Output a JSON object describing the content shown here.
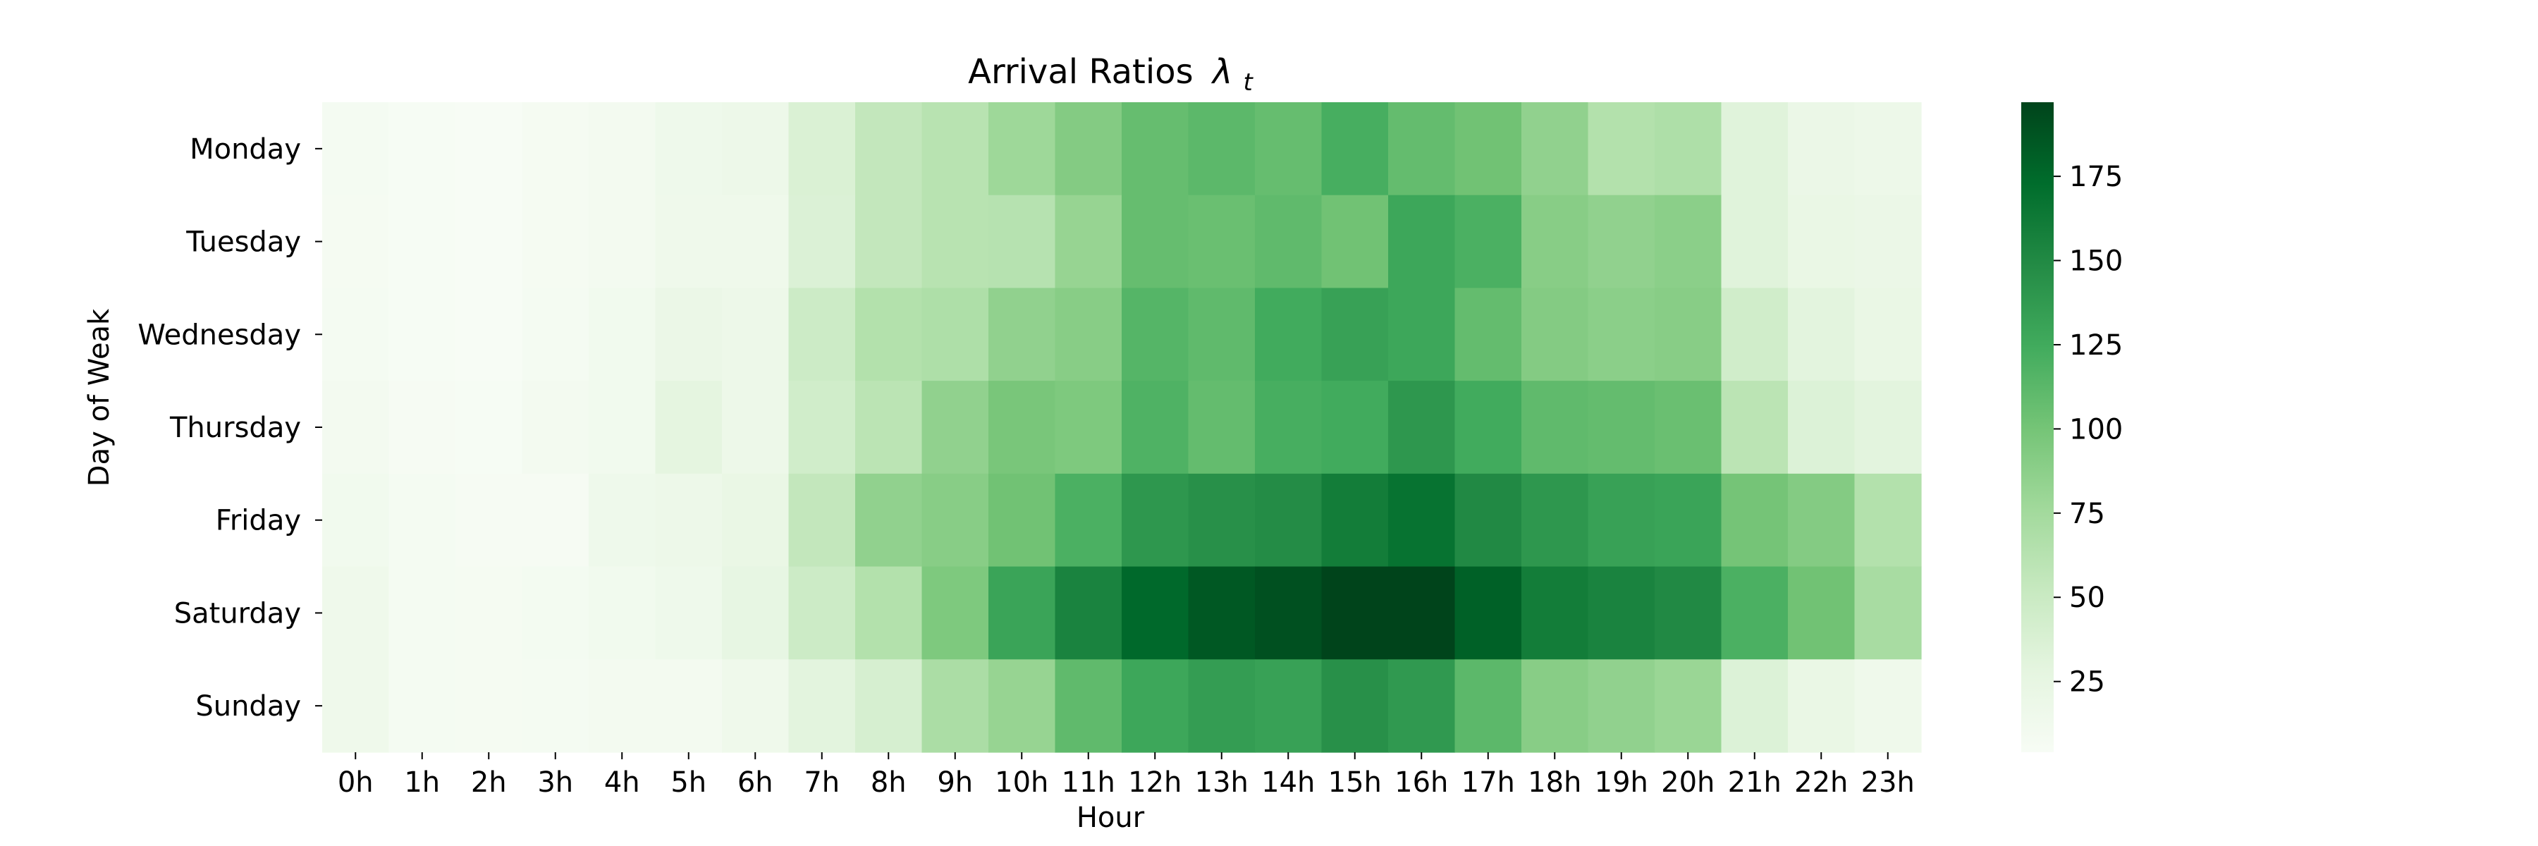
{
  "chart_data": {
    "type": "heatmap",
    "title": "Arrival Ratios",
    "title_math": "λ",
    "title_math_sub": "t",
    "xlabel": "Hour",
    "ylabel": "Day of Weak",
    "x_categories": [
      "0h",
      "1h",
      "2h",
      "3h",
      "4h",
      "5h",
      "6h",
      "7h",
      "8h",
      "9h",
      "10h",
      "11h",
      "12h",
      "13h",
      "14h",
      "15h",
      "16h",
      "17h",
      "18h",
      "19h",
      "20h",
      "21h",
      "22h",
      "23h"
    ],
    "y_categories": [
      "Monday",
      "Tuesday",
      "Wednesday",
      "Thursday",
      "Friday",
      "Saturday",
      "Sunday"
    ],
    "values": [
      [
        8,
        5,
        4,
        7,
        10,
        16,
        18,
        37,
        55,
        62,
        78,
        92,
        107,
        112,
        107,
        122,
        108,
        102,
        85,
        65,
        68,
        32,
        20,
        18
      ],
      [
        7,
        5,
        4,
        7,
        10,
        15,
        15,
        36,
        55,
        62,
        63,
        82,
        107,
        105,
        110,
        102,
        128,
        120,
        90,
        85,
        88,
        32,
        22,
        20
      ],
      [
        8,
        5,
        4,
        8,
        12,
        20,
        18,
        48,
        65,
        68,
        85,
        90,
        115,
        110,
        125,
        132,
        128,
        108,
        92,
        88,
        90,
        45,
        30,
        22
      ],
      [
        10,
        6,
        5,
        10,
        12,
        28,
        18,
        45,
        60,
        85,
        98,
        95,
        118,
        108,
        122,
        125,
        140,
        125,
        110,
        108,
        105,
        60,
        35,
        30
      ],
      [
        12,
        8,
        6,
        6,
        16,
        18,
        22,
        55,
        85,
        90,
        102,
        120,
        140,
        145,
        148,
        160,
        168,
        150,
        140,
        132,
        130,
        100,
        92,
        65
      ],
      [
        15,
        8,
        7,
        9,
        12,
        16,
        25,
        48,
        65,
        95,
        130,
        155,
        175,
        185,
        190,
        197,
        197,
        180,
        160,
        155,
        150,
        120,
        102,
        72
      ],
      [
        15,
        8,
        7,
        8,
        10,
        10,
        15,
        30,
        40,
        70,
        82,
        110,
        128,
        135,
        132,
        145,
        138,
        112,
        90,
        85,
        80,
        35,
        22,
        15
      ]
    ],
    "colorbar": {
      "vmin": 4,
      "vmax": 197,
      "ticks": [
        25,
        50,
        75,
        100,
        125,
        150,
        175
      ],
      "colormap": "Greens",
      "colors": [
        "#f7fcf5",
        "#e5f5e0",
        "#c7e9c0",
        "#a1d99b",
        "#74c476",
        "#41ab5d",
        "#238b45",
        "#006d2c",
        "#00441b"
      ]
    },
    "grid": false,
    "legend": "colorbar-right"
  }
}
